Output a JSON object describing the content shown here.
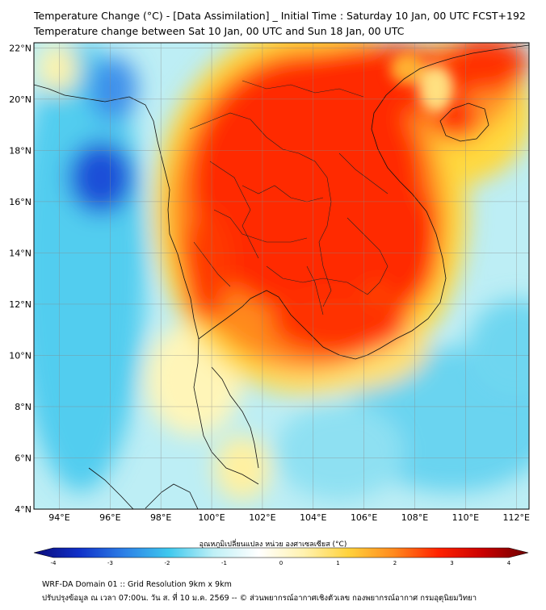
{
  "title": {
    "line1": "Temperature Change (°C) - [Data Assimilation] _ Initial Time : Saturday 10 Jan, 00 UTC FCST+192",
    "line2": "Temperature change between Sat 10 Jan, 00 UTC and Sun 18 Jan, 00 UTC"
  },
  "map": {
    "lon_range": [
      93,
      112.5
    ],
    "lat_range": [
      4,
      22.2
    ],
    "lon_ticks": [
      {
        "v": 94,
        "label": "94°E"
      },
      {
        "v": 96,
        "label": "96°E"
      },
      {
        "v": 98,
        "label": "98°E"
      },
      {
        "v": 100,
        "label": "100°E"
      },
      {
        "v": 102,
        "label": "102°E"
      },
      {
        "v": 104,
        "label": "104°E"
      },
      {
        "v": 106,
        "label": "106°E"
      },
      {
        "v": 108,
        "label": "108°E"
      },
      {
        "v": 110,
        "label": "110°E"
      },
      {
        "v": 112,
        "label": "112°E"
      }
    ],
    "lat_ticks": [
      {
        "v": 4,
        "label": "4°N"
      },
      {
        "v": 6,
        "label": "6°N"
      },
      {
        "v": 8,
        "label": "8°N"
      },
      {
        "v": 10,
        "label": "10°N"
      },
      {
        "v": 12,
        "label": "12°N"
      },
      {
        "v": 14,
        "label": "14°N"
      },
      {
        "v": 16,
        "label": "16°N"
      },
      {
        "v": 18,
        "label": "18°N"
      },
      {
        "v": 20,
        "label": "20°N"
      },
      {
        "v": 22,
        "label": "22°N"
      }
    ],
    "grid": true
  },
  "colorbar": {
    "label": "อุณหภูมิเปลี่ยนแปลง หน่วย องศาเซลเซียส (°C)",
    "min": -4,
    "max": 4,
    "ticks": [
      {
        "v": -4,
        "label": "-4"
      },
      {
        "v": -3,
        "label": "-3"
      },
      {
        "v": -2,
        "label": "-2"
      },
      {
        "v": -1,
        "label": "-1"
      },
      {
        "v": 0,
        "label": "0"
      },
      {
        "v": 1,
        "label": "1"
      },
      {
        "v": 2,
        "label": "2"
      },
      {
        "v": 3,
        "label": "3"
      },
      {
        "v": 4,
        "label": "4"
      }
    ],
    "colors": [
      "#0b0b78",
      "#1030c8",
      "#2c7fe6",
      "#3ec8ee",
      "#bff0f6",
      "#ffffff",
      "#fff2b0",
      "#ffd23c",
      "#ff8a1e",
      "#ff2200",
      "#c80000",
      "#6e0000"
    ]
  },
  "footer": {
    "line1": "WRF-DA Domain 01 :: Grid Resolution 9km x 9km",
    "line2": "ปรับปรุงข้อมูล ณ เวลา 07:00น. วัน ส. ที่ 10 ม.ค. 2569 -- © ส่วนพยากรณ์อากาศเชิงตัวเลข กองพยากรณ์อากาศ กรมอุตุนิยมวิทยา"
  }
}
